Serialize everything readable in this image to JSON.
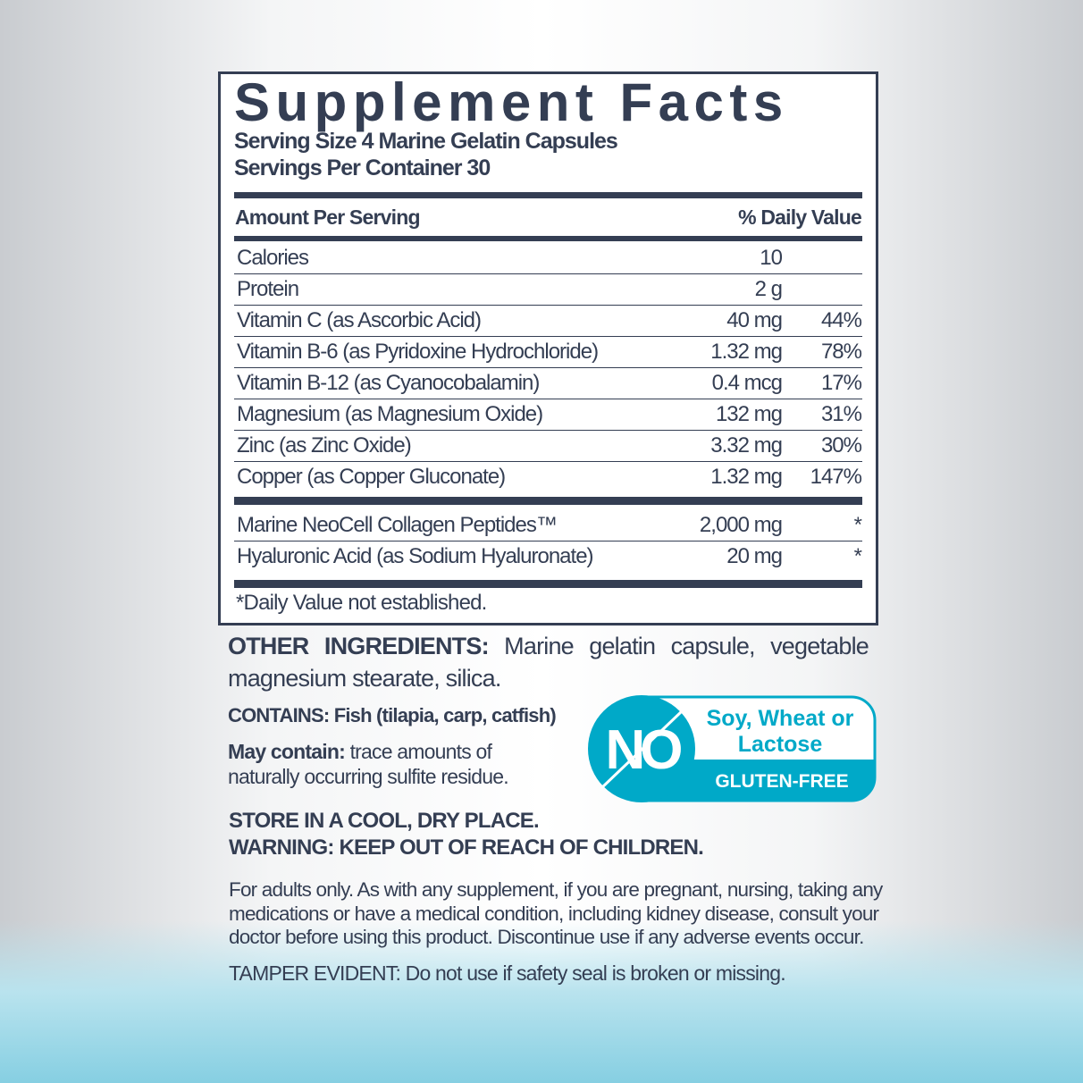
{
  "facts": {
    "title": "Supplement Facts",
    "serving_size": "Serving Size 4 Marine Gelatin Capsules",
    "servings_per_container": "Servings Per Container 30",
    "amount_header": "Amount Per Serving",
    "dv_header": "% Daily Value",
    "rows": [
      {
        "name": "Calories",
        "amount": "10",
        "dv": ""
      },
      {
        "name": "Protein",
        "amount": "2 g",
        "dv": ""
      },
      {
        "name": "Vitamin C (as Ascorbic Acid)",
        "amount": "40 mg",
        "dv": "44%"
      },
      {
        "name": "Vitamin B-6 (as Pyridoxine Hydrochloride)",
        "amount": "1.32 mg",
        "dv": "78%"
      },
      {
        "name": "Vitamin B-12 (as Cyanocobalamin)",
        "amount": "0.4 mcg",
        "dv": "17%"
      },
      {
        "name": "Magnesium (as Magnesium Oxide)",
        "amount": "132 mg",
        "dv": "31%"
      },
      {
        "name": "Zinc (as Zinc Oxide)",
        "amount": "3.32 mg",
        "dv": "30%"
      },
      {
        "name": "Copper (as Copper Gluconate)",
        "amount": "1.32 mg",
        "dv": "147%"
      }
    ],
    "other_rows": [
      {
        "name": "Marine NeoCell Collagen Peptides™",
        "amount": "2,000 mg",
        "dv": "*"
      },
      {
        "name": "Hyaluronic Acid (as Sodium Hyaluronate)",
        "amount": "20 mg",
        "dv": "*"
      }
    ],
    "footnote": "*Daily Value not established."
  },
  "other_ingredients": {
    "label": "OTHER INGREDIENTS:",
    "line1": "Marine gelatin capsule, vegetable",
    "line2": "magnesium stearate, silica."
  },
  "contains": "CONTAINS: Fish (tilapia, carp, catfish)",
  "may_contain": {
    "label": "May contain:",
    "text": " trace amounts of",
    "line2": "naturally occurring sulfite residue."
  },
  "storage": "STORE IN A COOL, DRY PLACE.",
  "warning": "WARNING: KEEP OUT OF REACH OF CHILDREN.",
  "adults": [
    "For adults only. As with any supplement, if you are pregnant, nursing, taking any",
    "medications or have a medical condition, including kidney disease, consult your",
    "doctor before using this product. Discontinue use if any adverse events occur."
  ],
  "tamper": "TAMPER EVIDENT: Do not use if safety seal is broken or missing.",
  "badge": {
    "no": "NO",
    "line1": "Soy, Wheat or",
    "line2": "Lactose",
    "gluten": "GLUTEN-FREE",
    "color": "#00a9c8"
  }
}
